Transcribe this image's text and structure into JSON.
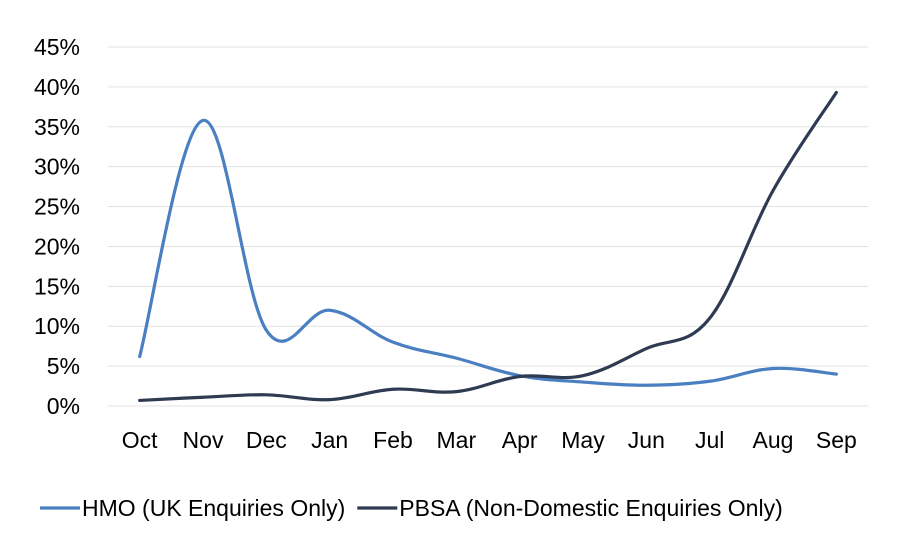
{
  "chart_data": {
    "type": "line",
    "categories": [
      "Oct",
      "Nov",
      "Dec",
      "Jan",
      "Feb",
      "Mar",
      "Apr",
      "May",
      "Jun",
      "Jul",
      "Aug",
      "Sep"
    ],
    "series": [
      {
        "name": "HMO (UK Enquiries Only)",
        "color": "#4a7fc1",
        "values": [
          6.2,
          35.8,
          9.5,
          12.0,
          8.0,
          6.0,
          3.8,
          3.0,
          2.6,
          3.1,
          4.7,
          4.0
        ]
      },
      {
        "name": "PBSA (Non-Domestic Enquiries Only)",
        "color": "#2f3b52",
        "values": [
          0.7,
          1.1,
          1.4,
          0.8,
          2.1,
          1.8,
          3.7,
          3.8,
          7.2,
          11.0,
          27.0,
          39.3
        ]
      }
    ],
    "yticks": [
      "0%",
      "5%",
      "10%",
      "15%",
      "20%",
      "25%",
      "30%",
      "35%",
      "40%",
      "45%"
    ],
    "ylim": [
      0,
      45
    ],
    "grid": true,
    "legend_position": "bottom"
  }
}
